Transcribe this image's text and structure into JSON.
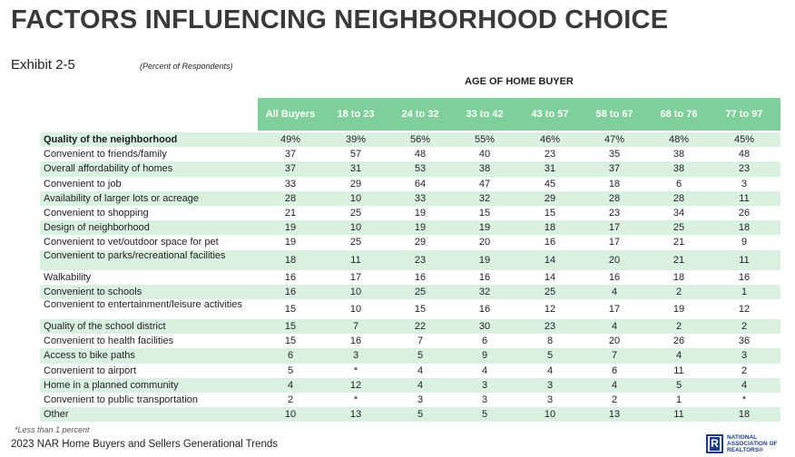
{
  "header": {
    "title": "FACTORS INFLUENCING NEIGHBORHOOD CHOICE",
    "exhibit": "Exhibit 2-5",
    "subtitle": "(Percent of Respondents)"
  },
  "chart_data": {
    "type": "table",
    "group_header": "AGE OF HOME BUYER",
    "columns": [
      "All Buyers",
      "18 to 23",
      "24 to 32",
      "33 to 42",
      "43 to 57",
      "58 to 67",
      "68 to 76",
      "77 to 97"
    ],
    "rows": [
      {
        "label": "Quality of the neighborhood",
        "values": [
          "49%",
          "39%",
          "56%",
          "55%",
          "46%",
          "47%",
          "48%",
          "45%"
        ]
      },
      {
        "label": "Convenient to friends/family",
        "values": [
          "37",
          "57",
          "48",
          "40",
          "23",
          "35",
          "38",
          "48"
        ]
      },
      {
        "label": "Overall affordability of homes",
        "values": [
          "37",
          "31",
          "53",
          "38",
          "31",
          "37",
          "38",
          "23"
        ]
      },
      {
        "label": "Convenient to job",
        "values": [
          "33",
          "29",
          "64",
          "47",
          "45",
          "18",
          "6",
          "3"
        ]
      },
      {
        "label": "Availability of larger lots or acreage",
        "values": [
          "28",
          "10",
          "33",
          "32",
          "29",
          "28",
          "28",
          "11"
        ]
      },
      {
        "label": "Convenient to shopping",
        "values": [
          "21",
          "25",
          "19",
          "15",
          "15",
          "23",
          "34",
          "26"
        ]
      },
      {
        "label": "Design of neighborhood",
        "values": [
          "19",
          "10",
          "19",
          "19",
          "18",
          "17",
          "25",
          "18"
        ]
      },
      {
        "label": "Convenient to vet/outdoor space for pet",
        "values": [
          "19",
          "25",
          "29",
          "20",
          "16",
          "17",
          "21",
          "9"
        ]
      },
      {
        "label": "Convenient to parks/recreational facilities",
        "values": [
          "18",
          "11",
          "23",
          "19",
          "14",
          "20",
          "21",
          "11"
        ]
      },
      {
        "label": "Walkability",
        "values": [
          "16",
          "17",
          "16",
          "16",
          "14",
          "16",
          "18",
          "16"
        ]
      },
      {
        "label": "Convenient to schools",
        "values": [
          "16",
          "10",
          "25",
          "32",
          "25",
          "4",
          "2",
          "1"
        ]
      },
      {
        "label": "Convenient to entertainment/leisure activities",
        "values": [
          "15",
          "10",
          "15",
          "16",
          "12",
          "17",
          "19",
          "12"
        ]
      },
      {
        "label": "Quality of the school district",
        "values": [
          "15",
          "7",
          "22",
          "30",
          "23",
          "4",
          "2",
          "2"
        ]
      },
      {
        "label": "Convenient to health facilities",
        "values": [
          "15",
          "16",
          "7",
          "6",
          "8",
          "20",
          "26",
          "36"
        ]
      },
      {
        "label": "Access to bike paths",
        "values": [
          "6",
          "3",
          "5",
          "9",
          "5",
          "7",
          "4",
          "3"
        ]
      },
      {
        "label": "Convenient to airport",
        "values": [
          "5",
          "*",
          "4",
          "4",
          "4",
          "6",
          "11",
          "2"
        ]
      },
      {
        "label": "Home in a planned community",
        "values": [
          "4",
          "12",
          "4",
          "3",
          "3",
          "4",
          "5",
          "4"
        ]
      },
      {
        "label": "Convenient to public transportation",
        "values": [
          "2",
          "*",
          "3",
          "3",
          "3",
          "2",
          "1",
          "*"
        ]
      },
      {
        "label": "Other",
        "values": [
          "10",
          "13",
          "5",
          "5",
          "10",
          "13",
          "11",
          "18"
        ]
      }
    ]
  },
  "footer": {
    "footnote": "*Less than 1 percent",
    "source": "2023 NAR Home Buyers and Sellers Generational Trends",
    "logo_mark": "R",
    "logo_text": "NATIONAL ASSOCIATION OF REALTORS®"
  },
  "colors": {
    "header_band": "#7fcf9a",
    "row_shade": "#daf1e1",
    "logo_blue": "#1b3d8f"
  }
}
